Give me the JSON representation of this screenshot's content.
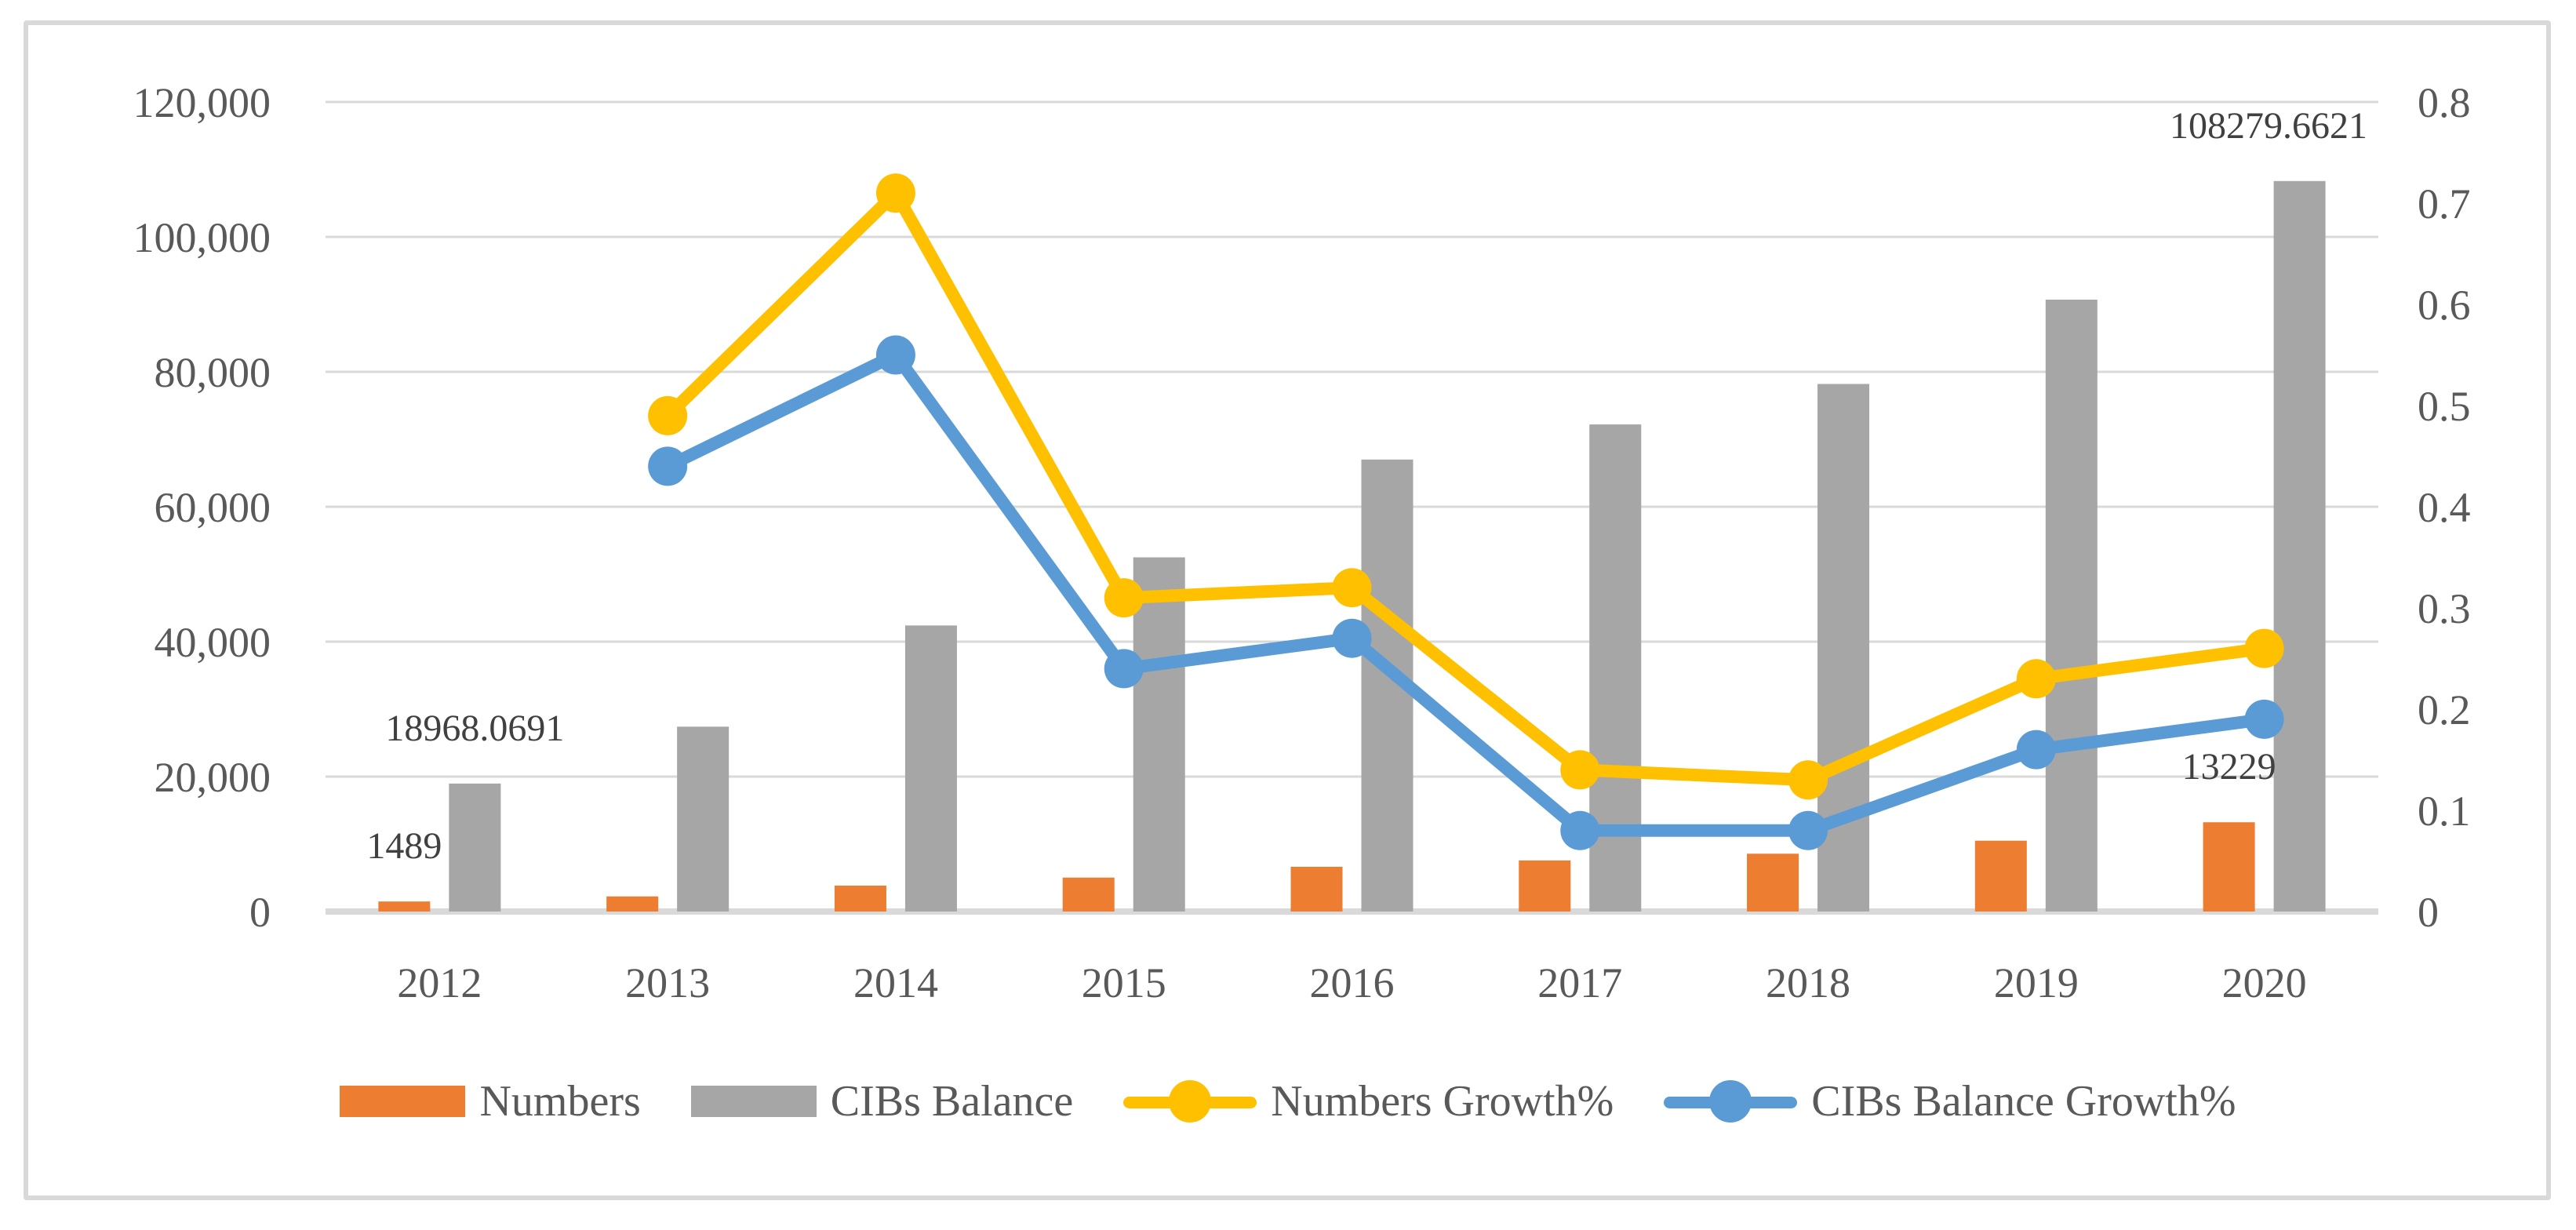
{
  "chart_data": {
    "type": "combo-bar-line",
    "title": "",
    "categories": [
      "2012",
      "2013",
      "2014",
      "2015",
      "2016",
      "2017",
      "2018",
      "2019",
      "2020"
    ],
    "series": [
      {
        "name": "Numbers",
        "type": "bar",
        "axis": "left",
        "color": "#ED7D31",
        "values": [
          1489,
          2240,
          3840,
          5030,
          6630,
          7570,
          8570,
          10500,
          13229
        ]
      },
      {
        "name": "CIBs Balance",
        "type": "bar",
        "axis": "left",
        "color": "#A6A6A6",
        "values": [
          18968.0691,
          27400,
          42400,
          52500,
          67000,
          72200,
          78200,
          90700,
          108279.6621
        ]
      },
      {
        "name": "Numbers Growth%",
        "type": "line",
        "axis": "right",
        "color": "#FFC000",
        "values": [
          null,
          0.49,
          0.71,
          0.31,
          0.32,
          0.14,
          0.13,
          0.23,
          0.26
        ]
      },
      {
        "name": "CIBs Balance Growth%",
        "type": "line",
        "axis": "right",
        "color": "#5B9BD5",
        "values": [
          null,
          0.44,
          0.55,
          0.24,
          0.27,
          0.08,
          0.08,
          0.16,
          0.19
        ]
      }
    ],
    "left_axis": {
      "min": 0,
      "max": 120000,
      "step": 20000,
      "tick_labels": [
        "0",
        "20,000",
        "40,000",
        "60,000",
        "80,000",
        "100,000",
        "120,000"
      ]
    },
    "right_axis": {
      "min": 0,
      "max": 0.8,
      "step": 0.1,
      "tick_labels": [
        "0",
        "0.1",
        "0.2",
        "0.3",
        "0.4",
        "0.5",
        "0.6",
        "0.7",
        "0.8"
      ]
    },
    "data_labels": [
      {
        "series": 0,
        "category": 0,
        "text": "1489"
      },
      {
        "series": 1,
        "category": 0,
        "text": "18968.0691"
      },
      {
        "series": 0,
        "category": 8,
        "text": "13229"
      },
      {
        "series": 1,
        "category": 8,
        "text": "108279.6621"
      }
    ],
    "legend_position": "bottom",
    "grid": true
  },
  "styles": {
    "gridline_color": "#D9D9D9",
    "baseline_color": "#D9D9D9",
    "axis_text_color": "#595959",
    "data_label_color": "#404040",
    "border_color": "#D9D9D9",
    "background": "#FFFFFF"
  }
}
